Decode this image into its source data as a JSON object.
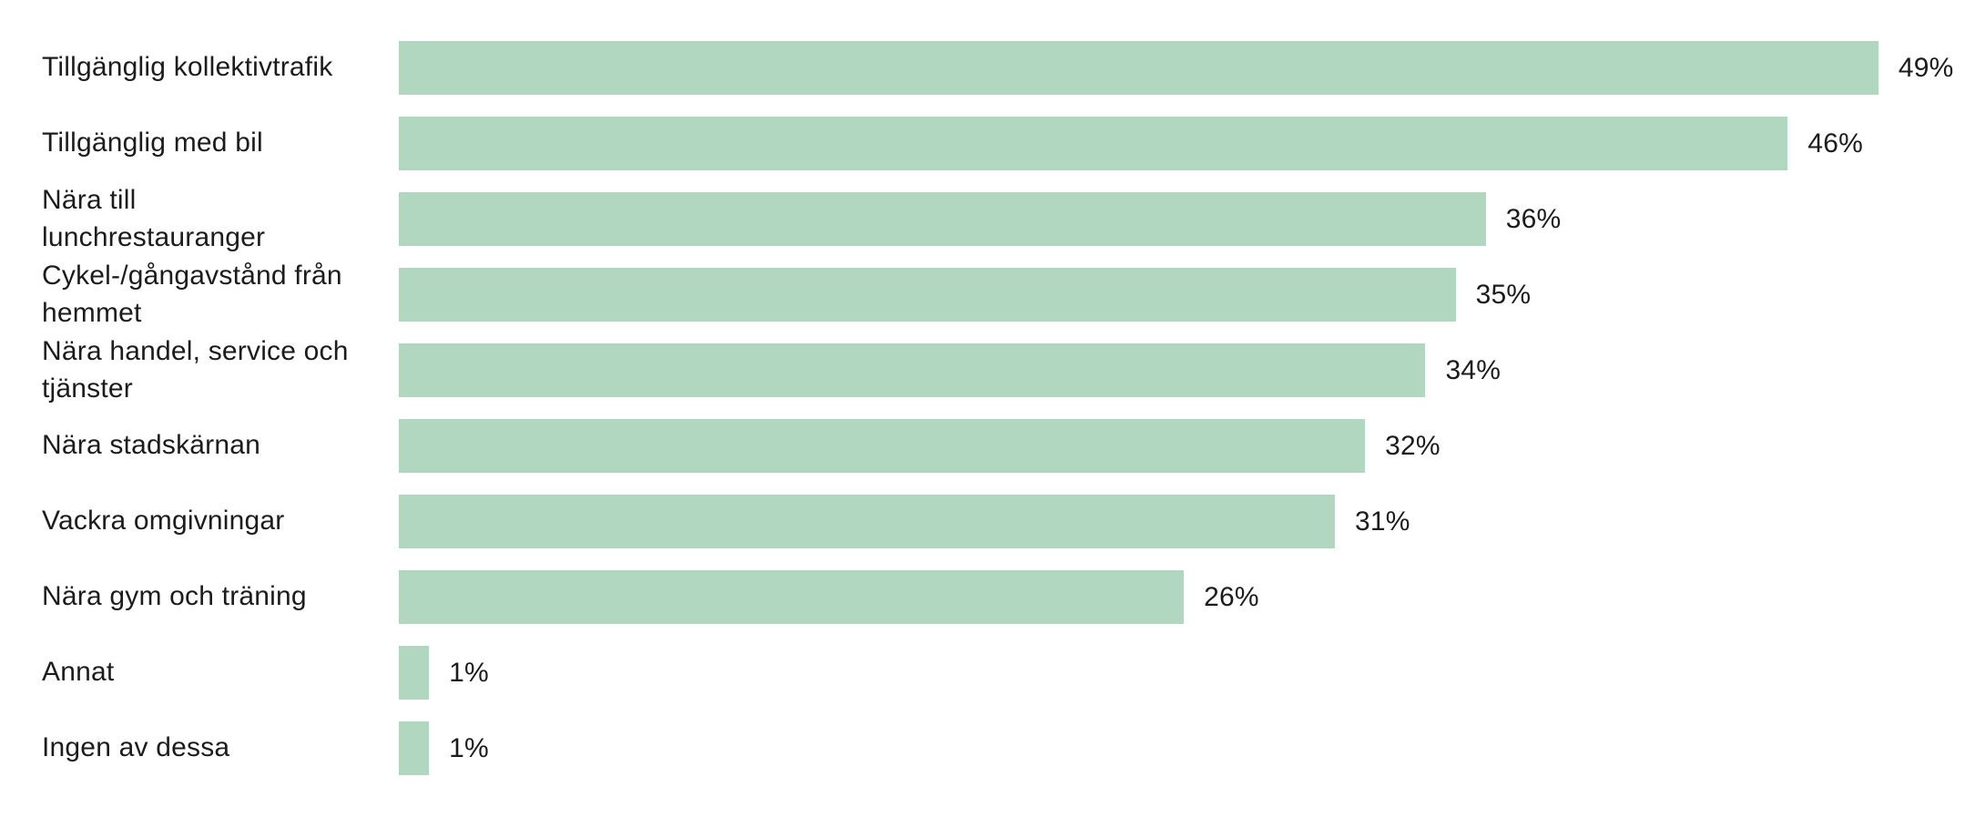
{
  "chart_data": {
    "type": "bar",
    "orientation": "horizontal",
    "title": "",
    "xlabel": "",
    "ylabel": "",
    "categories": [
      "Tillgänglig kollektivtrafik",
      "Tillgänglig med bil",
      "Nära till\nlunchrestauranger",
      "Cykel-/gångavstånd från\nhemmet",
      "Nära handel, service och\ntjänster",
      "Nära stadskärnan",
      "Vackra omgivningar",
      "Nära gym och träning",
      "Annat",
      "Ingen av dessa"
    ],
    "values": [
      49,
      46,
      36,
      35,
      34,
      32,
      31,
      26,
      1,
      1
    ],
    "value_labels": [
      "49%",
      "46%",
      "36%",
      "35%",
      "34%",
      "32%",
      "31%",
      "26%",
      "1%",
      "1%"
    ],
    "unit": "%",
    "xlim": [
      0,
      52
    ],
    "grid": false,
    "legend": null,
    "axis_lines": false,
    "bar_color": "#b1d7c1",
    "text_color": "#1c1c1c",
    "background_color": "#ffffff"
  }
}
